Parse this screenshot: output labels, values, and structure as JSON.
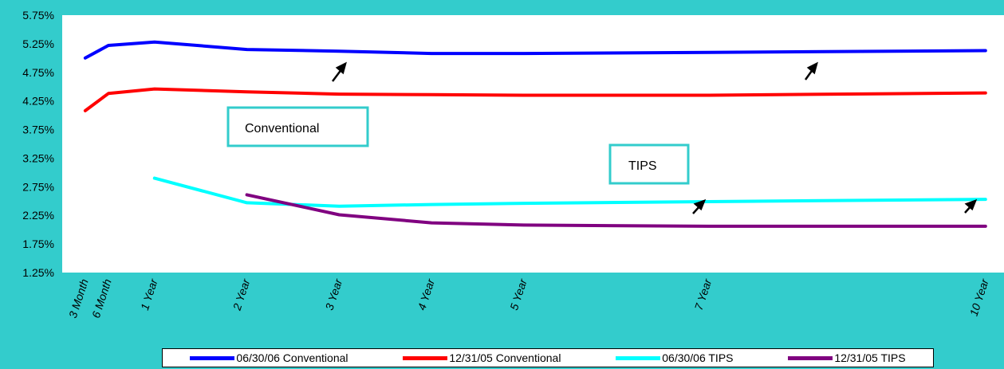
{
  "chart_data": {
    "type": "line",
    "title": "",
    "xlabel": "",
    "ylabel": "",
    "x_categories": [
      "3 Month",
      "6 Month",
      "1 Year",
      "2 Year",
      "3 Year",
      "4 Year",
      "5 Year",
      "7 Year",
      "10 Year"
    ],
    "x_years": [
      0.25,
      0.5,
      1,
      2,
      3,
      4,
      5,
      7,
      10
    ],
    "ylim": [
      1.25,
      5.75
    ],
    "yticks": [
      "1.25%",
      "1.75%",
      "2.25%",
      "2.75%",
      "3.25%",
      "3.75%",
      "4.25%",
      "4.75%",
      "5.25%",
      "5.75%"
    ],
    "grid": false,
    "legend_position": "bottom",
    "series": [
      {
        "name": "06/30/06 Conventional",
        "color": "#0000FF",
        "points": [
          [
            0.25,
            5.0
          ],
          [
            0.5,
            5.22
          ],
          [
            1,
            5.28
          ],
          [
            2,
            5.15
          ],
          [
            3,
            5.12
          ],
          [
            4,
            5.08
          ],
          [
            5,
            5.08
          ],
          [
            7,
            5.1
          ],
          [
            10,
            5.13
          ]
        ]
      },
      {
        "name": "12/31/05 Conventional",
        "color": "#FF0000",
        "points": [
          [
            0.25,
            4.08
          ],
          [
            0.5,
            4.38
          ],
          [
            1,
            4.46
          ],
          [
            2,
            4.41
          ],
          [
            3,
            4.37
          ],
          [
            4,
            4.36
          ],
          [
            5,
            4.35
          ],
          [
            7,
            4.35
          ],
          [
            10,
            4.39
          ]
        ]
      },
      {
        "name": "06/30/06 TIPS",
        "color": "#00FFFF",
        "points": [
          [
            1,
            2.9
          ],
          [
            2,
            2.47
          ],
          [
            3,
            2.41
          ],
          [
            4,
            2.44
          ],
          [
            5,
            2.46
          ],
          [
            7,
            2.49
          ],
          [
            10,
            2.53
          ]
        ]
      },
      {
        "name": "12/31/05 TIPS",
        "color": "#800080",
        "points": [
          [
            2,
            2.61
          ],
          [
            3,
            2.26
          ],
          [
            4,
            2.12
          ],
          [
            5,
            2.08
          ],
          [
            7,
            2.06
          ],
          [
            10,
            2.06
          ]
        ]
      }
    ],
    "annotations": [
      {
        "text": "Conventional"
      },
      {
        "text": "TIPS"
      }
    ]
  }
}
